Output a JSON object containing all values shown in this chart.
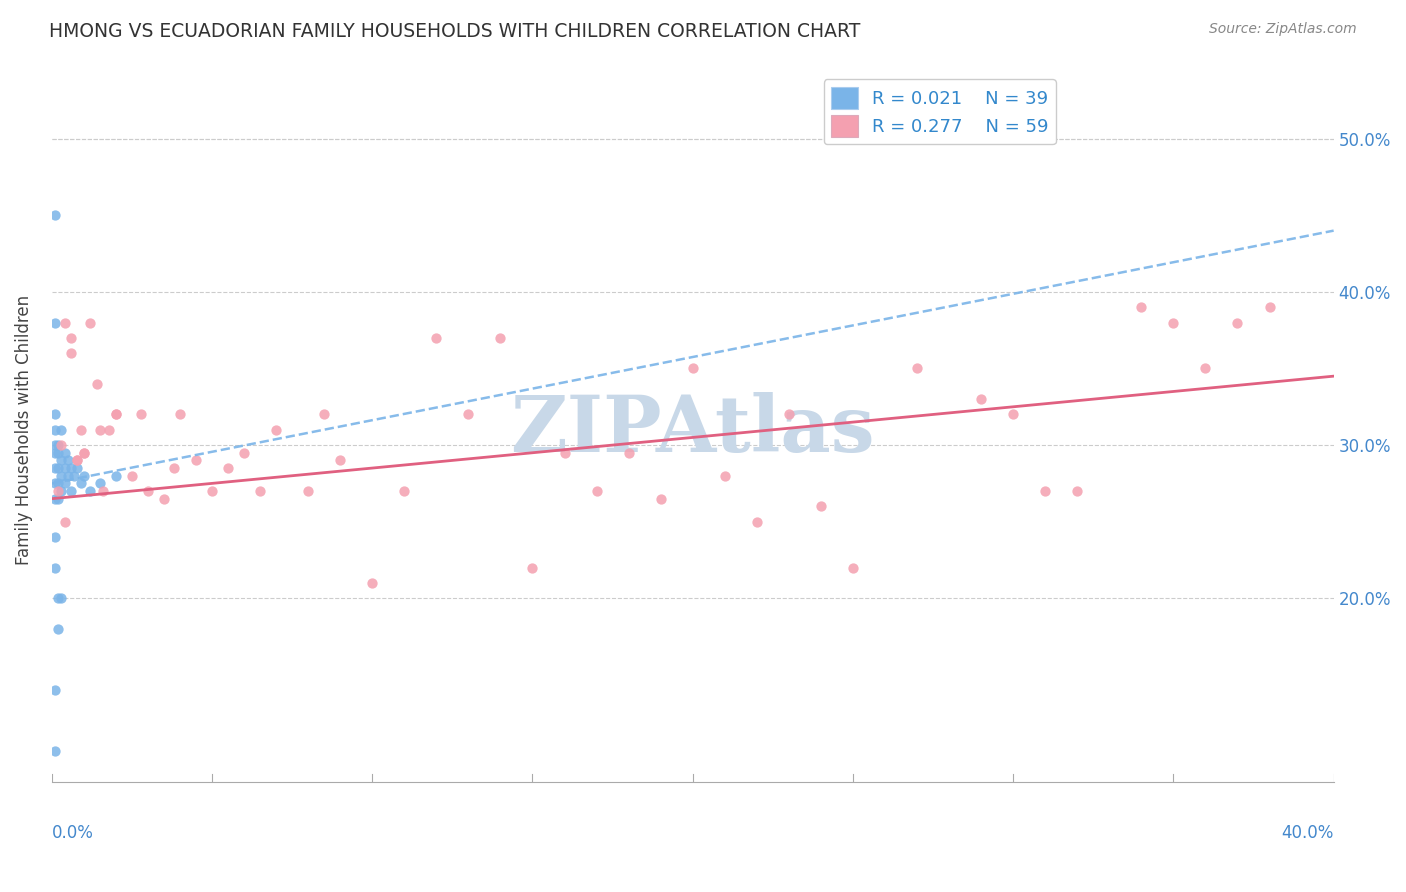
{
  "title": "HMONG VS ECUADORIAN FAMILY HOUSEHOLDS WITH CHILDREN CORRELATION CHART",
  "source": "Source: ZipAtlas.com",
  "ylabel": "Family Households with Children",
  "yticks": [
    "20.0%",
    "30.0%",
    "40.0%",
    "50.0%"
  ],
  "ytick_vals": [
    0.2,
    0.3,
    0.4,
    0.5
  ],
  "xlim": [
    0.0,
    0.4
  ],
  "ylim": [
    0.08,
    0.54
  ],
  "hmong_R": 0.021,
  "hmong_N": 39,
  "ecuadorian_R": 0.277,
  "ecuadorian_N": 59,
  "hmong_color": "#7ab4e8",
  "ecuadorian_color": "#f4a0b0",
  "hmong_line_color": "#7ab4e8",
  "ecuadorian_line_color": "#e06080",
  "watermark": "ZIPAtlas",
  "watermark_color": "#c8d8e8",
  "background_color": "#ffffff",
  "hmong_x": [
    0.001,
    0.001,
    0.001,
    0.001,
    0.001,
    0.001,
    0.001,
    0.002,
    0.002,
    0.002,
    0.002,
    0.002,
    0.003,
    0.003,
    0.003,
    0.003,
    0.004,
    0.004,
    0.004,
    0.005,
    0.005,
    0.006,
    0.006,
    0.007,
    0.008,
    0.009,
    0.01,
    0.012,
    0.015,
    0.02,
    0.001,
    0.001,
    0.001,
    0.002,
    0.002,
    0.003,
    0.001,
    0.001,
    0.001
  ],
  "hmong_y": [
    0.295,
    0.285,
    0.275,
    0.265,
    0.3,
    0.31,
    0.32,
    0.295,
    0.285,
    0.275,
    0.265,
    0.3,
    0.29,
    0.28,
    0.27,
    0.31,
    0.295,
    0.285,
    0.275,
    0.29,
    0.28,
    0.285,
    0.27,
    0.28,
    0.285,
    0.275,
    0.28,
    0.27,
    0.275,
    0.28,
    0.38,
    0.24,
    0.22,
    0.2,
    0.18,
    0.2,
    0.45,
    0.14,
    0.1
  ],
  "ecuadorian_x": [
    0.002,
    0.003,
    0.004,
    0.006,
    0.008,
    0.009,
    0.01,
    0.012,
    0.014,
    0.016,
    0.018,
    0.02,
    0.025,
    0.028,
    0.03,
    0.035,
    0.038,
    0.04,
    0.045,
    0.05,
    0.055,
    0.06,
    0.065,
    0.07,
    0.08,
    0.085,
    0.09,
    0.1,
    0.11,
    0.12,
    0.13,
    0.14,
    0.15,
    0.16,
    0.17,
    0.18,
    0.19,
    0.2,
    0.21,
    0.22,
    0.23,
    0.24,
    0.25,
    0.27,
    0.29,
    0.3,
    0.31,
    0.32,
    0.34,
    0.35,
    0.36,
    0.37,
    0.38,
    0.004,
    0.006,
    0.008,
    0.01,
    0.015,
    0.02
  ],
  "ecuadorian_y": [
    0.27,
    0.3,
    0.25,
    0.36,
    0.29,
    0.31,
    0.295,
    0.38,
    0.34,
    0.27,
    0.31,
    0.32,
    0.28,
    0.32,
    0.27,
    0.265,
    0.285,
    0.32,
    0.29,
    0.27,
    0.285,
    0.295,
    0.27,
    0.31,
    0.27,
    0.32,
    0.29,
    0.21,
    0.27,
    0.37,
    0.32,
    0.37,
    0.22,
    0.295,
    0.27,
    0.295,
    0.265,
    0.35,
    0.28,
    0.25,
    0.32,
    0.26,
    0.22,
    0.35,
    0.33,
    0.32,
    0.27,
    0.27,
    0.39,
    0.38,
    0.35,
    0.38,
    0.39,
    0.38,
    0.37,
    0.29,
    0.295,
    0.31,
    0.32
  ]
}
